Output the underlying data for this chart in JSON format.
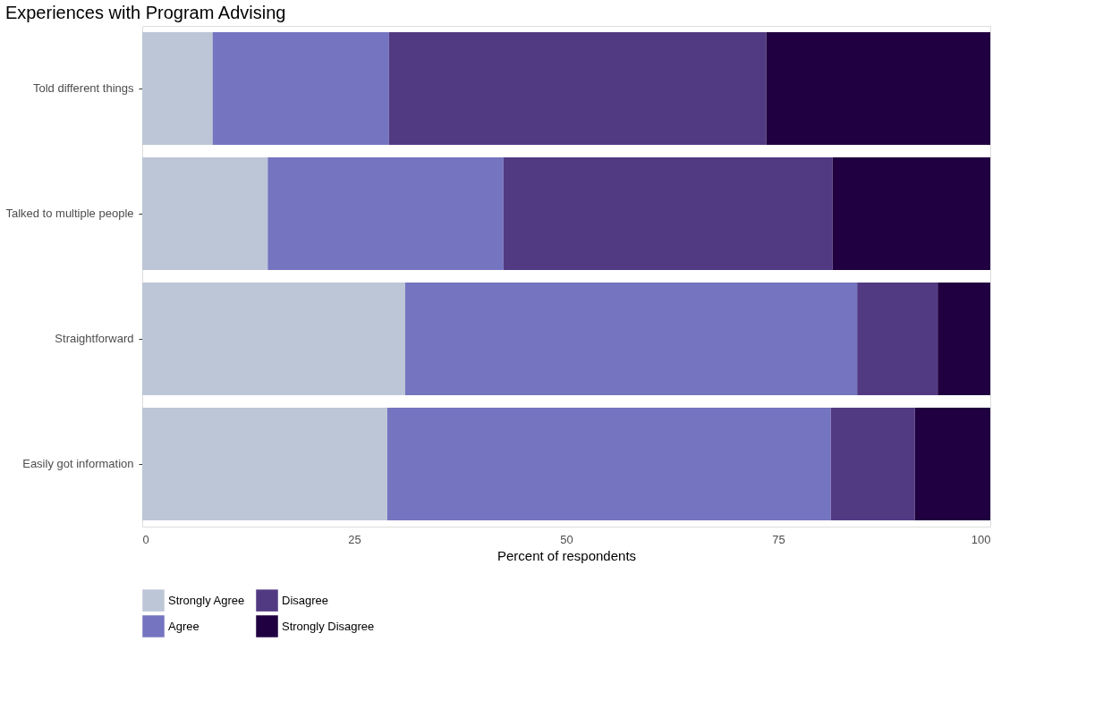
{
  "chart_data": {
    "type": "bar",
    "orientation": "horizontal",
    "stacked": true,
    "title": "Experiences with Program Advising",
    "xlabel": "Percent of respondents",
    "categories": [
      "Told different things",
      "Talked to multiple people",
      "Straightforward",
      "Easily got information"
    ],
    "series": [
      {
        "name": "Strongly Agree",
        "color": "#bcc6d6",
        "values": [
          8.3,
          14.8,
          31.0,
          28.9
        ]
      },
      {
        "name": "Agree",
        "color": "#7574c0",
        "values": [
          20.8,
          27.8,
          53.3,
          52.3
        ]
      },
      {
        "name": "Disagree",
        "color": "#523a83",
        "values": [
          44.5,
          38.8,
          9.5,
          9.9
        ]
      },
      {
        "name": "Strongly Disagree",
        "color": "#200040",
        "values": [
          26.4,
          18.6,
          6.2,
          8.9
        ]
      }
    ],
    "xlim": [
      0,
      100
    ],
    "xticks": [
      0,
      25,
      50,
      75,
      100
    ],
    "grid": false,
    "legend": "bottom"
  }
}
